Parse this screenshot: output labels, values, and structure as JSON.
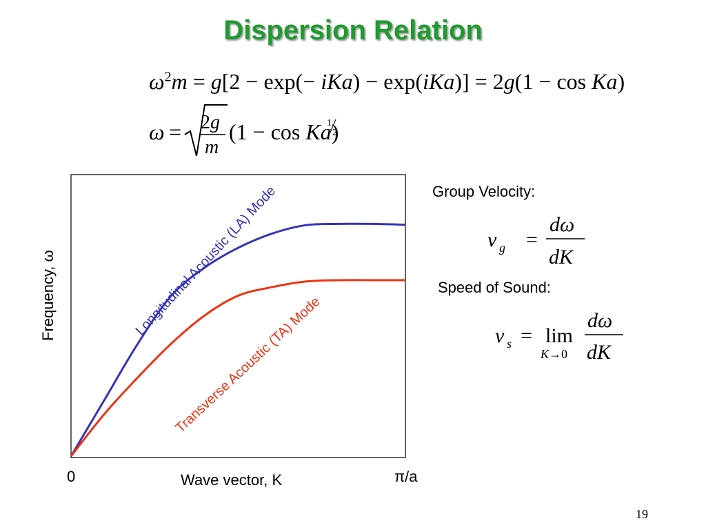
{
  "slide": {
    "title": "Dispersion Relation",
    "page_number": "19"
  },
  "equations": {
    "dispersion_full": "ω²m = g[2 − exp(−iKa) − exp(iKa)] = 2g(1 − cos Ka)",
    "dispersion_omega": "ω = √(2g/m) (1 − cos Ka)^½",
    "group_velocity": "v_g = dω/dK",
    "speed_of_sound": "v_s = lim K→0 dω/dK"
  },
  "labels": {
    "group_velocity": "Group Velocity:",
    "speed_of_sound": "Speed of Sound:"
  },
  "chart_data": {
    "type": "line",
    "title": "",
    "xlabel": "Wave vector, K",
    "ylabel": "Frequency, ω",
    "x_ticks": [
      "0",
      "π/a"
    ],
    "xlim": [
      0,
      1
    ],
    "ylim": [
      0,
      1
    ],
    "grid": false,
    "series": [
      {
        "name": "Longitudinal Acoustic (LA) Mode",
        "color": "#3333bb",
        "x": [
          0,
          0.1,
          0.2,
          0.3,
          0.4,
          0.5,
          0.6,
          0.7,
          0.8,
          0.9,
          1.0
        ],
        "y": [
          0,
          0.2,
          0.4,
          0.57,
          0.67,
          0.74,
          0.79,
          0.82,
          0.825,
          0.825,
          0.822
        ]
      },
      {
        "name": "Transverse Acoustic (TA) Mode",
        "color": "#ee3311",
        "x": [
          0,
          0.1,
          0.2,
          0.3,
          0.4,
          0.5,
          0.6,
          0.7,
          0.8,
          0.9,
          1.0
        ],
        "y": [
          0,
          0.15,
          0.28,
          0.4,
          0.5,
          0.57,
          0.6,
          0.62,
          0.625,
          0.625,
          0.625
        ]
      }
    ]
  }
}
